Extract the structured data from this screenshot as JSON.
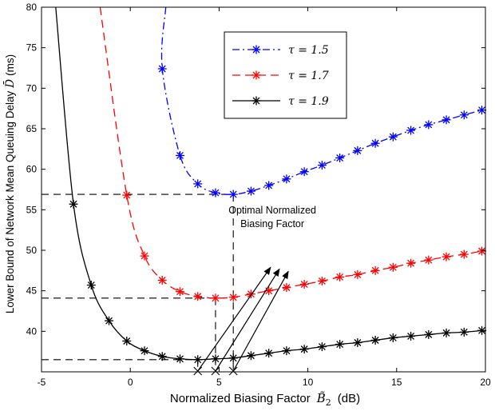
{
  "chart_data": {
    "type": "line",
    "xlabel": "Normalized Biasing Factor",
    "xlabel_symbol": "B",
    "xlabel_sub": "2",
    "xlabel_unit": "(dB)",
    "ylabel": "Lower Bound of Network Mean Queuing Delay",
    "ylabel_symbol": "D",
    "ylabel_unit": "(ms)",
    "xlim": [
      -5,
      20
    ],
    "ylim": [
      35,
      80
    ],
    "xticks": [
      -5,
      0,
      5,
      10,
      15,
      20
    ],
    "yticks": [
      40,
      45,
      50,
      55,
      60,
      65,
      70,
      75,
      80
    ],
    "xtick_labels": [
      "-5",
      "0",
      "5",
      "10",
      "15",
      "20"
    ],
    "ytick_labels": [
      "40",
      "45",
      "50",
      "55",
      "60",
      "65",
      "70",
      "75",
      "80"
    ],
    "legend_position": "top-right",
    "legend_prefix": "τ = ",
    "series": [
      {
        "name": "τ = 1.5",
        "tau": "1.5",
        "color": "#0000ff",
        "dash": "dashdot",
        "curve_start": [
          2.0,
          80
        ],
        "x": [
          1.8,
          2.8,
          3.8,
          4.8,
          5.8,
          6.8,
          7.8,
          8.8,
          9.8,
          10.8,
          11.8,
          12.8,
          13.8,
          14.8,
          15.8,
          16.8,
          17.8,
          18.8,
          19.8
        ],
        "y": [
          72.4,
          61.7,
          58.2,
          57.1,
          56.9,
          57.3,
          58.0,
          58.8,
          59.7,
          60.5,
          61.4,
          62.3,
          63.2,
          64.0,
          64.8,
          65.5,
          66.1,
          66.7,
          67.3
        ]
      },
      {
        "name": "τ = 1.7",
        "tau": "1.7",
        "color": "#ff0000",
        "dash": "dashed",
        "curve_start": [
          -1.7,
          80
        ],
        "x": [
          -0.2,
          0.8,
          1.8,
          2.8,
          3.8,
          4.8,
          5.8,
          6.8,
          7.8,
          8.8,
          9.8,
          10.8,
          11.8,
          12.8,
          13.8,
          14.8,
          15.8,
          16.8,
          17.8,
          18.8,
          19.8
        ],
        "y": [
          56.8,
          49.3,
          46.3,
          44.9,
          44.3,
          44.1,
          44.2,
          44.6,
          45.0,
          45.4,
          45.8,
          46.2,
          46.7,
          47.0,
          47.5,
          47.9,
          48.4,
          48.8,
          49.2,
          49.5,
          49.9
        ]
      },
      {
        "name": "τ = 1.9",
        "tau": "1.9",
        "color": "#000000",
        "dash": "solid",
        "curve_start": [
          -4.2,
          80
        ],
        "x": [
          -3.2,
          -2.2,
          -1.2,
          -0.2,
          0.8,
          1.8,
          2.8,
          3.8,
          4.8,
          5.8,
          6.8,
          7.8,
          8.8,
          9.8,
          10.8,
          11.8,
          12.8,
          13.8,
          14.8,
          15.8,
          16.8,
          17.8,
          18.8,
          19.8
        ],
        "y": [
          55.7,
          45.7,
          41.3,
          38.8,
          37.6,
          36.9,
          36.6,
          36.5,
          36.6,
          36.7,
          37.0,
          37.3,
          37.6,
          37.8,
          38.1,
          38.4,
          38.6,
          38.9,
          39.2,
          39.4,
          39.6,
          39.8,
          39.9,
          40.1
        ]
      }
    ],
    "reference_lines": [
      {
        "x_opt": 5.8,
        "y_min": 56.9,
        "color": "#000000"
      },
      {
        "x_opt": 4.8,
        "y_min": 44.1,
        "color": "#000000"
      },
      {
        "x_opt": 3.8,
        "y_min": 36.5,
        "color": "#000000"
      }
    ],
    "annotation": {
      "text_line1": "Optimal Normalized",
      "text_line2": "Biasing Factor",
      "arrow_tips": [
        [
          7.9,
          47.9
        ],
        [
          8.4,
          47.7
        ],
        [
          8.9,
          47.4
        ]
      ]
    }
  }
}
